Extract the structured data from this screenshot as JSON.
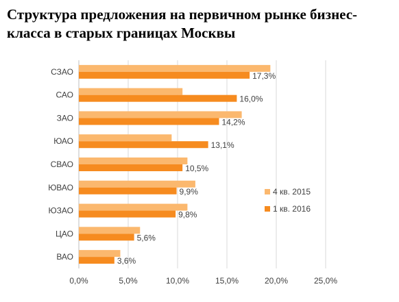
{
  "title": "Структура предложения  на первичном рынке бизнес-класса в старых границах Москвы",
  "chart_data": {
    "type": "bar",
    "orientation": "horizontal",
    "title": "Структура предложения  на первичном рынке бизнес-класса в старых границах Москвы",
    "categories": [
      "СЗАО",
      "САО",
      "ЗАО",
      "ЮАО",
      "СВАО",
      "ЮВАО",
      "ЮЗАО",
      "ЦАО",
      "ВАО"
    ],
    "series": [
      {
        "name": "4 кв. 2015",
        "color": "#fbb86e",
        "values": [
          19.4,
          10.5,
          16.5,
          9.4,
          11.0,
          11.8,
          11.0,
          6.2,
          4.2
        ]
      },
      {
        "name": "1 кв. 2016",
        "color": "#f68b1f",
        "values": [
          17.3,
          16.0,
          14.2,
          13.1,
          10.5,
          9.9,
          9.8,
          5.6,
          3.6
        ],
        "labels": [
          "17,3%",
          "16,0%",
          "14,2%",
          "13,1%",
          "10,5%",
          "9,9%",
          "9,8%",
          "5,6%",
          "3,6%"
        ]
      }
    ],
    "x_ticks": [
      "0,0%",
      "5,0%",
      "10,0%",
      "15,0%",
      "20,0%",
      "25,0%"
    ],
    "xlim": [
      0,
      25
    ],
    "grid": true,
    "legend_position": "right"
  }
}
